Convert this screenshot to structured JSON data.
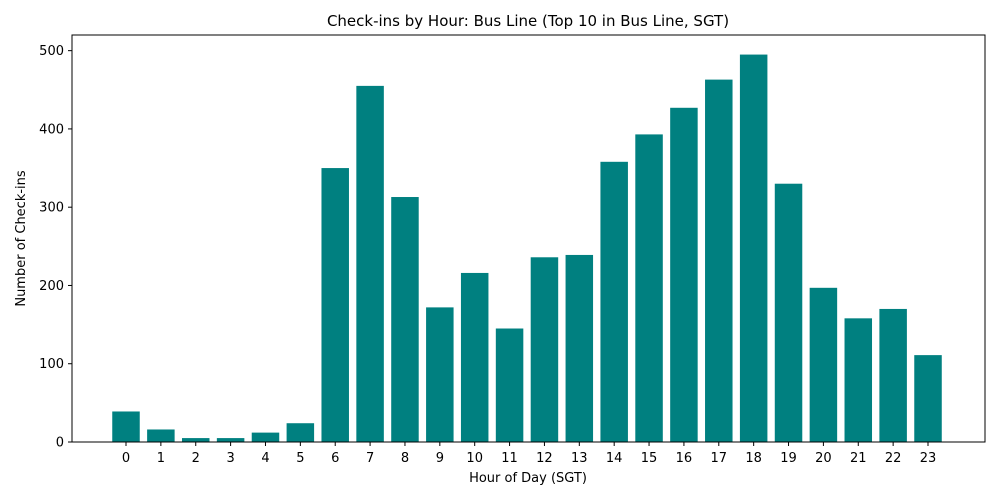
{
  "chart_data": {
    "type": "bar",
    "title": "Check-ins by Hour: Bus Line (Top 10 in Bus Line, SGT)",
    "xlabel": "Hour of Day (SGT)",
    "ylabel": "Number of Check-ins",
    "categories": [
      "0",
      "1",
      "2",
      "3",
      "4",
      "5",
      "6",
      "7",
      "8",
      "9",
      "10",
      "11",
      "12",
      "13",
      "14",
      "15",
      "16",
      "17",
      "18",
      "19",
      "20",
      "21",
      "22",
      "23"
    ],
    "values": [
      39,
      16,
      5,
      5,
      12,
      24,
      350,
      455,
      313,
      172,
      216,
      145,
      236,
      239,
      358,
      393,
      427,
      463,
      495,
      330,
      197,
      158,
      170,
      111
    ],
    "ylim": [
      0,
      520
    ],
    "yticks": [
      "0",
      "100",
      "200",
      "300",
      "400",
      "500"
    ],
    "grid": false,
    "bar_color": "#008080"
  }
}
